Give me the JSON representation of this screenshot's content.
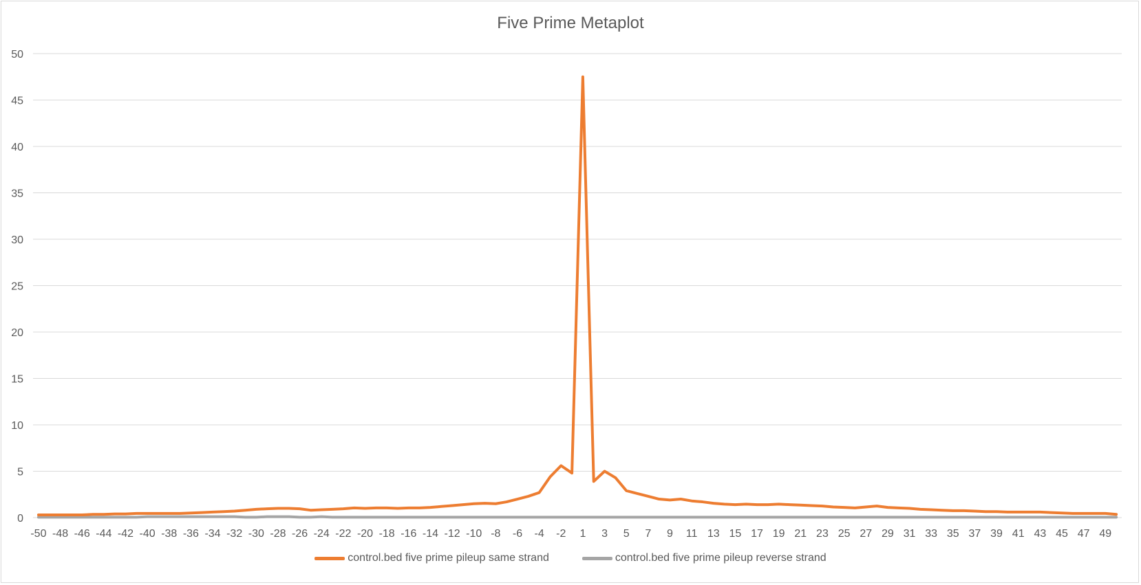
{
  "chart_data": {
    "type": "line",
    "title": "Five Prime Metaplot",
    "xlabel": "",
    "ylabel": "",
    "ylim": [
      0,
      50
    ],
    "yticks": [
      "0",
      "5",
      "10",
      "15",
      "20",
      "25",
      "30",
      "35",
      "40",
      "45",
      "50"
    ],
    "grid": true,
    "legend_position": "bottom",
    "x": [
      -50,
      -49,
      -48,
      -47,
      -46,
      -45,
      -44,
      -43,
      -42,
      -41,
      -40,
      -39,
      -38,
      -37,
      -36,
      -35,
      -34,
      -33,
      -32,
      -31,
      -30,
      -29,
      -28,
      -27,
      -26,
      -25,
      -24,
      -23,
      -22,
      -21,
      -20,
      -19,
      -18,
      -17,
      -16,
      -15,
      -14,
      -13,
      -12,
      -11,
      -10,
      -9,
      -8,
      -7,
      -6,
      -5,
      -4,
      -3,
      -2,
      -1,
      1,
      2,
      3,
      4,
      5,
      6,
      7,
      8,
      9,
      10,
      11,
      12,
      13,
      14,
      15,
      16,
      17,
      18,
      19,
      20,
      21,
      22,
      23,
      24,
      25,
      26,
      27,
      28,
      29,
      30,
      31,
      32,
      33,
      34,
      35,
      36,
      37,
      38,
      39,
      40,
      41,
      42,
      43,
      44,
      45,
      46,
      47,
      48,
      49,
      50
    ],
    "xtick_labels": [
      "-50",
      "-48",
      "-46",
      "-44",
      "-42",
      "-40",
      "-38",
      "-36",
      "-34",
      "-32",
      "-30",
      "-28",
      "-26",
      "-24",
      "-22",
      "-20",
      "-18",
      "-16",
      "-14",
      "-12",
      "-10",
      "-8",
      "-6",
      "-4",
      "-2",
      "1",
      "3",
      "5",
      "7",
      "9",
      "11",
      "13",
      "15",
      "17",
      "19",
      "21",
      "23",
      "25",
      "27",
      "29",
      "31",
      "33",
      "35",
      "37",
      "39",
      "41",
      "43",
      "45",
      "47",
      "49"
    ],
    "series": [
      {
        "name": "control.bed five prime pileup same strand",
        "color": "#ED7D31",
        "values": [
          0.3,
          0.3,
          0.3,
          0.3,
          0.3,
          0.35,
          0.35,
          0.4,
          0.4,
          0.45,
          0.45,
          0.45,
          0.45,
          0.45,
          0.5,
          0.55,
          0.6,
          0.65,
          0.7,
          0.8,
          0.9,
          0.95,
          1.0,
          1.0,
          0.95,
          0.8,
          0.85,
          0.9,
          0.95,
          1.05,
          1.0,
          1.05,
          1.05,
          1.0,
          1.05,
          1.05,
          1.1,
          1.2,
          1.3,
          1.4,
          1.5,
          1.55,
          1.5,
          1.7,
          2.0,
          2.3,
          2.7,
          4.4,
          5.6,
          4.8,
          47.5,
          3.9,
          5.0,
          4.3,
          2.9,
          2.6,
          2.3,
          2.0,
          1.9,
          2.0,
          1.8,
          1.7,
          1.55,
          1.45,
          1.4,
          1.45,
          1.4,
          1.4,
          1.45,
          1.4,
          1.35,
          1.3,
          1.25,
          1.15,
          1.1,
          1.05,
          1.15,
          1.25,
          1.1,
          1.05,
          1.0,
          0.9,
          0.85,
          0.8,
          0.75,
          0.75,
          0.7,
          0.65,
          0.65,
          0.6,
          0.6,
          0.6,
          0.6,
          0.55,
          0.5,
          0.45,
          0.45,
          0.45,
          0.45,
          0.35
        ]
      },
      {
        "name": "control.bed five prime pileup reverse strand",
        "color": "#A5A5A5",
        "values": [
          0.05,
          0.05,
          0.05,
          0.05,
          0.05,
          0.05,
          0.05,
          0.05,
          0.05,
          0.05,
          0.1,
          0.1,
          0.1,
          0.1,
          0.1,
          0.1,
          0.1,
          0.1,
          0.1,
          0.05,
          0.05,
          0.1,
          0.1,
          0.1,
          0.05,
          0.05,
          0.1,
          0.05,
          0.05,
          0.05,
          0.05,
          0.05,
          0.05,
          0.05,
          0.05,
          0.05,
          0.05,
          0.05,
          0.05,
          0.05,
          0.05,
          0.05,
          0.05,
          0.05,
          0.05,
          0.05,
          0.05,
          0.05,
          0.05,
          0.05,
          0.05,
          0.05,
          0.05,
          0.05,
          0.05,
          0.05,
          0.05,
          0.05,
          0.05,
          0.05,
          0.05,
          0.05,
          0.05,
          0.05,
          0.05,
          0.05,
          0.05,
          0.05,
          0.05,
          0.05,
          0.05,
          0.05,
          0.05,
          0.05,
          0.05,
          0.05,
          0.05,
          0.05,
          0.05,
          0.05,
          0.05,
          0.05,
          0.05,
          0.05,
          0.05,
          0.05,
          0.05,
          0.05,
          0.05,
          0.05,
          0.05,
          0.05,
          0.05,
          0.05,
          0.05,
          0.05,
          0.05,
          0.05,
          0.05,
          0.05
        ]
      }
    ]
  }
}
